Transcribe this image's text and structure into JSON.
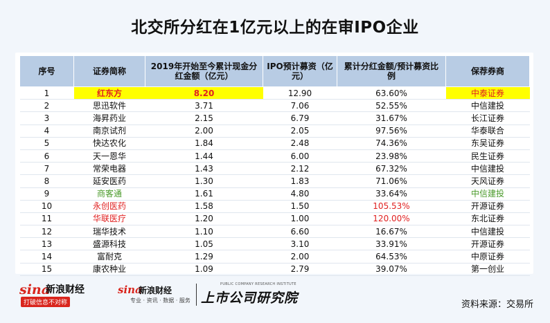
{
  "title": "北交所分红在1亿元以上的在审IPO企业",
  "table": {
    "headers": [
      "序号",
      "证券简称",
      "2019年开始至今累计现金分红金额（亿元）",
      "IPO预计募资（亿元）",
      "累计分红金额/预计募资比例",
      "保荐券商"
    ],
    "rows": [
      {
        "no": "1",
        "name": "红东方",
        "dividend": "8.20",
        "ipo": "12.90",
        "ratio": "63.60%",
        "broker": "中泰证券"
      },
      {
        "no": "2",
        "name": "思迅软件",
        "dividend": "3.71",
        "ipo": "7.06",
        "ratio": "52.55%",
        "broker": "中信建投"
      },
      {
        "no": "3",
        "name": "海昇药业",
        "dividend": "2.15",
        "ipo": "6.79",
        "ratio": "31.67%",
        "broker": "长江证券"
      },
      {
        "no": "4",
        "name": "南京试剂",
        "dividend": "2.00",
        "ipo": "2.05",
        "ratio": "97.56%",
        "broker": "华泰联合"
      },
      {
        "no": "5",
        "name": "快达农化",
        "dividend": "1.84",
        "ipo": "2.48",
        "ratio": "74.36%",
        "broker": "东吴证券"
      },
      {
        "no": "6",
        "name": "天一恩华",
        "dividend": "1.44",
        "ipo": "6.00",
        "ratio": "23.98%",
        "broker": "民生证券"
      },
      {
        "no": "7",
        "name": "常荣电器",
        "dividend": "1.43",
        "ipo": "2.12",
        "ratio": "67.32%",
        "broker": "中信建投"
      },
      {
        "no": "8",
        "name": "延安医药",
        "dividend": "1.30",
        "ipo": "1.83",
        "ratio": "71.06%",
        "broker": "天风证券"
      },
      {
        "no": "9",
        "name": "商客通",
        "dividend": "1.61",
        "ipo": "4.80",
        "ratio": "33.64%",
        "broker": "中信建投"
      },
      {
        "no": "10",
        "name": "永创医药",
        "dividend": "1.58",
        "ipo": "1.50",
        "ratio": "105.53%",
        "broker": "开源证券"
      },
      {
        "no": "11",
        "name": "华联医疗",
        "dividend": "1.20",
        "ipo": "1.00",
        "ratio": "120.00%",
        "broker": "东北证券"
      },
      {
        "no": "12",
        "name": "瑞华技术",
        "dividend": "1.10",
        "ipo": "6.60",
        "ratio": "16.67%",
        "broker": "中信建投"
      },
      {
        "no": "13",
        "name": "盛源科技",
        "dividend": "1.05",
        "ipo": "3.10",
        "ratio": "33.91%",
        "broker": "开源证券"
      },
      {
        "no": "14",
        "name": "富耐克",
        "dividend": "1.29",
        "ipo": "2.00",
        "ratio": "64.53%",
        "broker": "中原证券"
      },
      {
        "no": "15",
        "name": "康农种业",
        "dividend": "1.09",
        "ipo": "2.79",
        "ratio": "39.07%",
        "broker": "第一创业"
      }
    ]
  },
  "footer": {
    "sina_logo_word": "sina",
    "sina_logo_cn": "新浪财经",
    "sina_slogan": "打破信息不对称",
    "sina2_logo_word": "sina",
    "sina2_logo_cn": "新浪财经",
    "sina2_tagline": "专业 · 资讯 · 数据 · 服务",
    "institute_eng": "PUBLIC COMPANY RESEARCH INSTITUTE",
    "institute_cn": "上市公司研究院",
    "source": "资料来源：交易所"
  },
  "colors": {
    "header_bg": "#b8cce4",
    "highlight": "#ffff00",
    "red": "#e02020",
    "green": "#4a9a2a"
  }
}
